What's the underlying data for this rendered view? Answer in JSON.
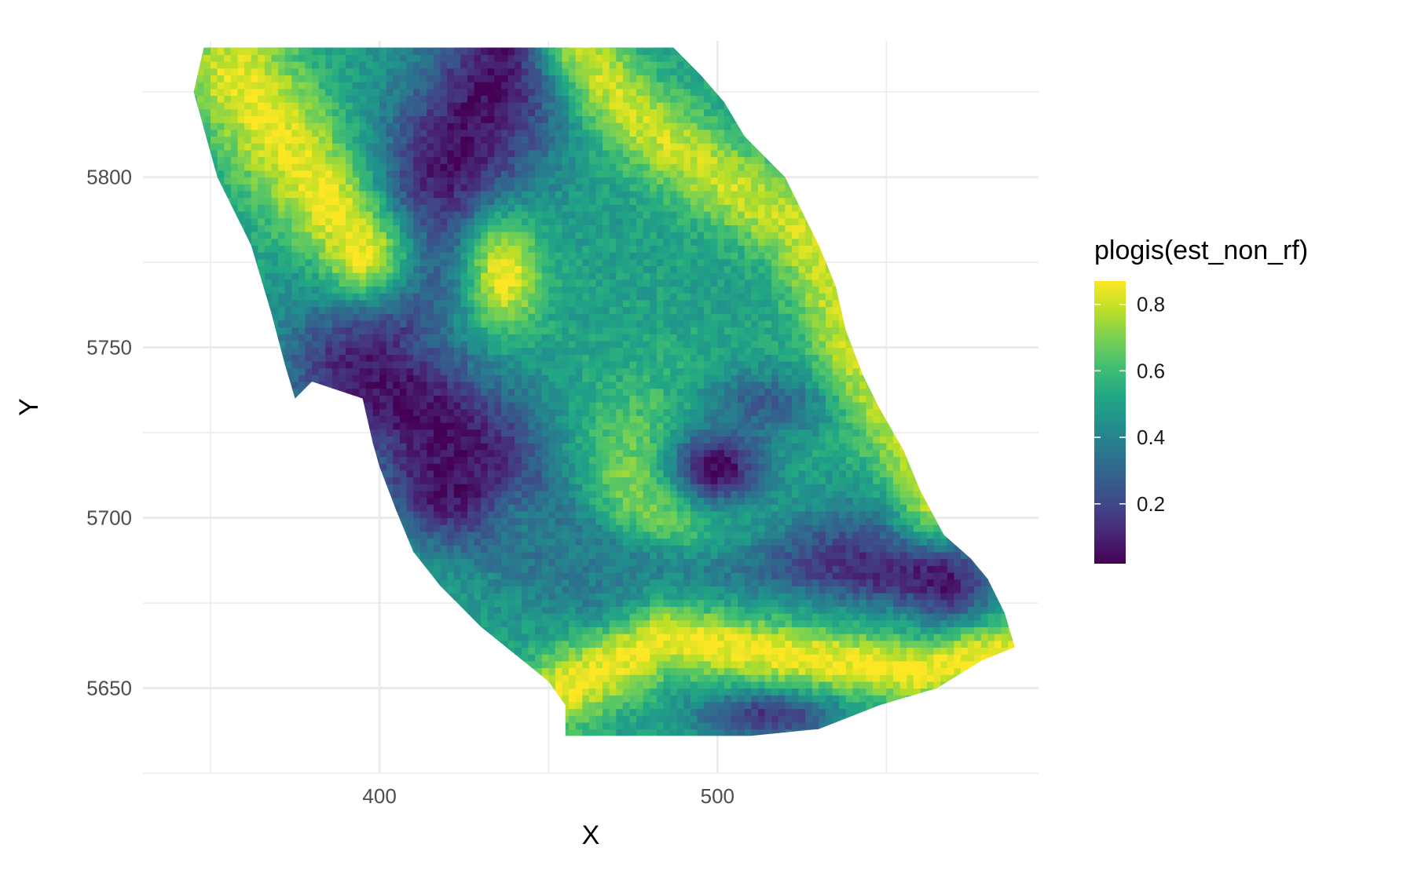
{
  "chart_data": {
    "type": "heatmap",
    "title": "",
    "xlabel": "X",
    "ylabel": "Y",
    "x_ticks": [
      400,
      500
    ],
    "y_ticks": [
      5650,
      5700,
      5750,
      5800
    ],
    "xlim": [
      330,
      595
    ],
    "ylim": [
      5625,
      5840
    ],
    "grid": true,
    "cell_size": 2,
    "colorscale": "viridis",
    "legend": {
      "title": "plogis(est_non_rf)",
      "placement": "right",
      "range": [
        0.02,
        0.87
      ],
      "ticks": [
        0.2,
        0.4,
        0.6,
        0.8
      ],
      "tick_labels": [
        "0.2",
        "0.4",
        "0.6",
        "0.8"
      ]
    },
    "domain_outline": [
      [
        348,
        5838
      ],
      [
        455,
        5838
      ],
      [
        487,
        5838
      ],
      [
        495,
        5830
      ],
      [
        502,
        5822
      ],
      [
        508,
        5812
      ],
      [
        520,
        5800
      ],
      [
        525,
        5790
      ],
      [
        530,
        5780
      ],
      [
        535,
        5768
      ],
      [
        538,
        5755
      ],
      [
        543,
        5742
      ],
      [
        548,
        5732
      ],
      [
        555,
        5720
      ],
      [
        560,
        5708
      ],
      [
        567,
        5695
      ],
      [
        575,
        5688
      ],
      [
        580,
        5682
      ],
      [
        585,
        5672
      ],
      [
        588,
        5662
      ],
      [
        578,
        5658
      ],
      [
        565,
        5650
      ],
      [
        548,
        5645
      ],
      [
        530,
        5638
      ],
      [
        510,
        5636
      ],
      [
        490,
        5636
      ],
      [
        470,
        5636
      ],
      [
        455,
        5636
      ],
      [
        455,
        5645
      ],
      [
        450,
        5652
      ],
      [
        440,
        5660
      ],
      [
        430,
        5668
      ],
      [
        418,
        5680
      ],
      [
        410,
        5690
      ],
      [
        405,
        5702
      ],
      [
        400,
        5715
      ],
      [
        398,
        5722
      ],
      [
        395,
        5735
      ],
      [
        380,
        5740
      ],
      [
        375,
        5735
      ],
      [
        372,
        5745
      ],
      [
        368,
        5760
      ],
      [
        362,
        5780
      ],
      [
        352,
        5800
      ],
      [
        345,
        5825
      ]
    ],
    "value_field": [
      {
        "type": "band",
        "points": [
          [
            440,
            5838
          ],
          [
            425,
            5810
          ],
          [
            410,
            5790
          ],
          [
            400,
            5765
          ],
          [
            395,
            5745
          ],
          [
            420,
            5725
          ],
          [
            450,
            5705
          ],
          [
            480,
            5690
          ],
          [
            520,
            5685
          ],
          [
            560,
            5680
          ]
        ],
        "width": 16,
        "value": 0.05
      },
      {
        "type": "band",
        "points": [
          [
            358,
            5830
          ],
          [
            372,
            5810
          ],
          [
            385,
            5792
          ],
          [
            395,
            5778
          ]
        ],
        "width": 12,
        "value": 0.85
      },
      {
        "type": "band",
        "points": [
          [
            460,
            5838
          ],
          [
            475,
            5818
          ],
          [
            500,
            5800
          ],
          [
            525,
            5785
          ],
          [
            535,
            5765
          ],
          [
            542,
            5745
          ],
          [
            555,
            5725
          ],
          [
            565,
            5705
          ]
        ],
        "width": 9,
        "value": 0.8
      },
      {
        "type": "blob",
        "center": [
          437,
          5772
        ],
        "rx": 13,
        "ry": 20,
        "value": 0.86
      },
      {
        "type": "blob",
        "center": [
          510,
          5732
        ],
        "rx": 22,
        "ry": 12,
        "value": 0.04
      },
      {
        "type": "blob",
        "center": [
          488,
          5710
        ],
        "rx": 42,
        "ry": 32,
        "value": 0.85
      },
      {
        "type": "blob",
        "center": [
          500,
          5715
        ],
        "rx": 20,
        "ry": 16,
        "value": 0.03
      },
      {
        "type": "blob",
        "center": [
          566,
          5680
        ],
        "rx": 9,
        "ry": 9,
        "value": 0.04
      },
      {
        "type": "band",
        "points": [
          [
            440,
            5700
          ],
          [
            470,
            5682
          ],
          [
            510,
            5675
          ],
          [
            555,
            5668
          ]
        ],
        "width": 7,
        "value": 0.38
      },
      {
        "type": "band",
        "points": [
          [
            455,
            5650
          ],
          [
            485,
            5665
          ],
          [
            520,
            5660
          ],
          [
            560,
            5655
          ],
          [
            585,
            5660
          ]
        ],
        "width": 8,
        "value": 0.86
      },
      {
        "type": "blob",
        "center": [
          515,
          5642
        ],
        "rx": 24,
        "ry": 8,
        "value": 0.15
      },
      {
        "type": "blob",
        "center": [
          420,
          5710
        ],
        "rx": 18,
        "ry": 18,
        "value": 0.05
      }
    ]
  }
}
